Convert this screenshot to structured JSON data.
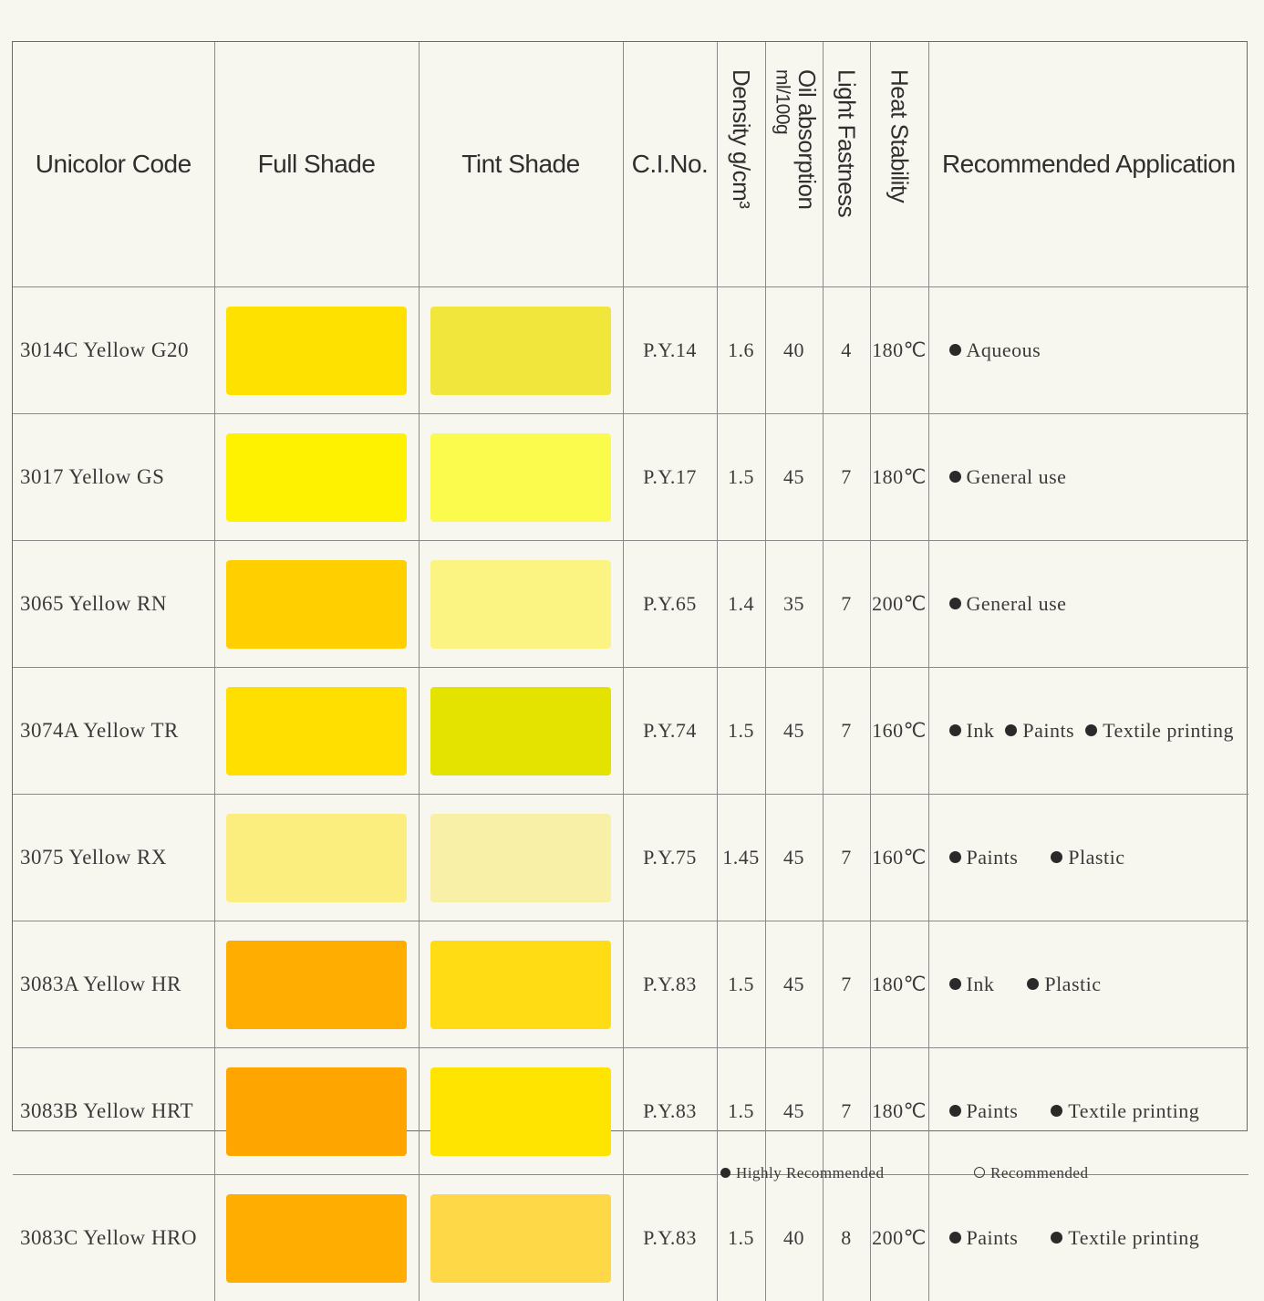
{
  "headers": {
    "code": "Unicolor Code",
    "full_shade": "Full Shade",
    "tint_shade": "Tint Shade",
    "ci_no": "C.I.No.",
    "density": "Density g/cm³",
    "oil_absorption": "Oil absorption",
    "oil_absorption_unit": "ml/100g",
    "light_fastness": "Light Fastness",
    "heat_stability": "Heat Stability",
    "application": "Recommended Application"
  },
  "rows": [
    {
      "code": "3014C Yellow G20",
      "full": "#ffe100",
      "tint": "#f0e63c",
      "ci": "P.Y.14",
      "density": "1.6",
      "oil": "40",
      "light": "4",
      "heat": "180℃",
      "apps": [
        "Aqueous"
      ]
    },
    {
      "code": "3017 Yellow GS",
      "full": "#fff200",
      "tint": "#fbfb4e",
      "ci": "P.Y.17",
      "density": "1.5",
      "oil": "45",
      "light": "7",
      "heat": "180℃",
      "apps": [
        "General use"
      ]
    },
    {
      "code": "3065 Yellow RN",
      "full": "#ffcf00",
      "tint": "#fcf482",
      "ci": "P.Y.65",
      "density": "1.4",
      "oil": "35",
      "light": "7",
      "heat": "200℃",
      "apps": [
        "General use"
      ]
    },
    {
      "code": "3074A Yellow TR",
      "full": "#ffdf00",
      "tint": "#e4e300",
      "ci": "P.Y.74",
      "density": "1.5",
      "oil": "45",
      "light": "7",
      "heat": "160℃",
      "apps": [
        "Ink",
        "Paints",
        "Textile printing"
      ]
    },
    {
      "code": "3075 Yellow RX",
      "full": "#fbee7e",
      "tint": "#f8f0a6",
      "ci": "P.Y.75",
      "density": "1.45",
      "oil": "45",
      "light": "7",
      "heat": "160℃",
      "apps": [
        "Paints",
        "Plastic"
      ]
    },
    {
      "code": "3083A Yellow HR",
      "full": "#ffad00",
      "tint": "#ffdc14",
      "ci": "P.Y.83",
      "density": "1.5",
      "oil": "45",
      "light": "7",
      "heat": "180℃",
      "apps": [
        "Ink",
        "Plastic"
      ]
    },
    {
      "code": "3083B Yellow HRT",
      "full": "#ffa500",
      "tint": "#ffe400",
      "ci": "P.Y.83",
      "density": "1.5",
      "oil": "45",
      "light": "7",
      "heat": "180℃",
      "apps": [
        "Paints",
        "Textile printing"
      ]
    },
    {
      "code": "3083C Yellow HRO",
      "full": "#ffad00",
      "tint": "#ffd848",
      "ci": "P.Y.83",
      "density": "1.5",
      "oil": "40",
      "light": "8",
      "heat": "200℃",
      "apps": [
        "Paints",
        "Textile printing"
      ]
    }
  ],
  "legend": {
    "highly": "Highly Recommended",
    "recommended": "Recommended"
  }
}
